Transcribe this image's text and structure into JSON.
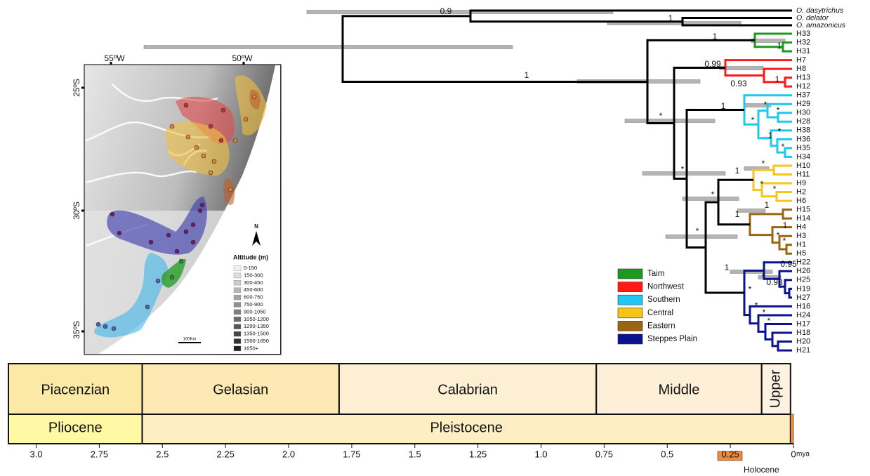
{
  "tree": {
    "tips": [
      "O. dasytrichus",
      "O. delator",
      "O. amazonicus",
      "H33",
      "H32",
      "H31",
      "H7",
      "H8",
      "H13",
      "H12",
      "H37",
      "H29",
      "H30",
      "H28",
      "H38",
      "H36",
      "H35",
      "H34",
      "H10",
      "H11",
      "H9",
      "H2",
      "H6",
      "H15",
      "H14",
      "H4",
      "H3",
      "H1",
      "H5",
      "H22",
      "H26",
      "H25",
      "H19",
      "H27",
      "H16",
      "H24",
      "H17",
      "H18",
      "H20",
      "H21"
    ],
    "supports": [
      "0.9",
      "1",
      "1",
      "1",
      "1",
      "0.99",
      "0.93",
      "1",
      "*",
      "1",
      "*",
      "*",
      "*",
      "*",
      "1",
      "*",
      "*",
      "1",
      "*",
      "*",
      "*",
      "*",
      "1",
      "1",
      "1",
      "*",
      "*",
      "*",
      "1",
      "0.95",
      "*",
      "0.98",
      "*",
      "*",
      "*",
      "*"
    ]
  },
  "legend": [
    {
      "name": "Taim",
      "color": "#1b9a1b"
    },
    {
      "name": "Northwest",
      "color": "#ff1a1a"
    },
    {
      "name": "Southern",
      "color": "#1ec8f2"
    },
    {
      "name": "Central",
      "color": "#f5c518"
    },
    {
      "name": "Eastern",
      "color": "#9a6410"
    },
    {
      "name": "Steppes Plain",
      "color": "#0a1290"
    }
  ],
  "map": {
    "lon_labels": [
      "55ºW",
      "50ºW"
    ],
    "lat_labels": [
      "25ºS",
      "30ºS",
      "35ºS"
    ],
    "north": "N",
    "altitude_title": "Altitude (m)",
    "altitude_classes": [
      "0-150",
      "150-300",
      "300-450",
      "450-600",
      "600-750",
      "750-900",
      "900-1050",
      "1050-1200",
      "1200-1350",
      "1350-1500",
      "1500-1650",
      "1650+"
    ],
    "scale_label": "100Km"
  },
  "timescale": {
    "range": [
      3.11,
      0
    ],
    "stages": [
      {
        "name": "Piacenzian",
        "start": 3.11,
        "end": 2.58,
        "color": "#fde9a6"
      },
      {
        "name": "Gelasian",
        "start": 2.58,
        "end": 1.8,
        "color": "#fde9b4"
      },
      {
        "name": "Calabrian",
        "start": 1.8,
        "end": 0.781,
        "color": "#fdf0d2"
      },
      {
        "name": "Middle",
        "start": 0.781,
        "end": 0.126,
        "color": "#fdefd8"
      },
      {
        "name": "Upper",
        "start": 0.126,
        "end": 0.0117,
        "color": "#fdf2e2"
      }
    ],
    "epochs": [
      {
        "name": "Pliocene",
        "start": 3.11,
        "end": 2.58,
        "color": "#fff8a4"
      },
      {
        "name": "Pleistocene",
        "start": 2.58,
        "end": 0.0117,
        "color": "#fdeec4"
      },
      {
        "name": "Holocene",
        "start": 0.0117,
        "end": 0,
        "color": "#f08a3c"
      }
    ],
    "ticks": [
      {
        "value": 3,
        "label": "3.0"
      },
      2.75,
      {
        "value": 2.5,
        "label": "2.5"
      },
      2.25,
      {
        "value": 2,
        "label": "2.0"
      },
      1.75,
      1.5,
      1.25,
      {
        "value": 1,
        "label": "1.0"
      },
      0.75,
      0.5,
      0.25,
      0
    ],
    "unit": "mya"
  }
}
